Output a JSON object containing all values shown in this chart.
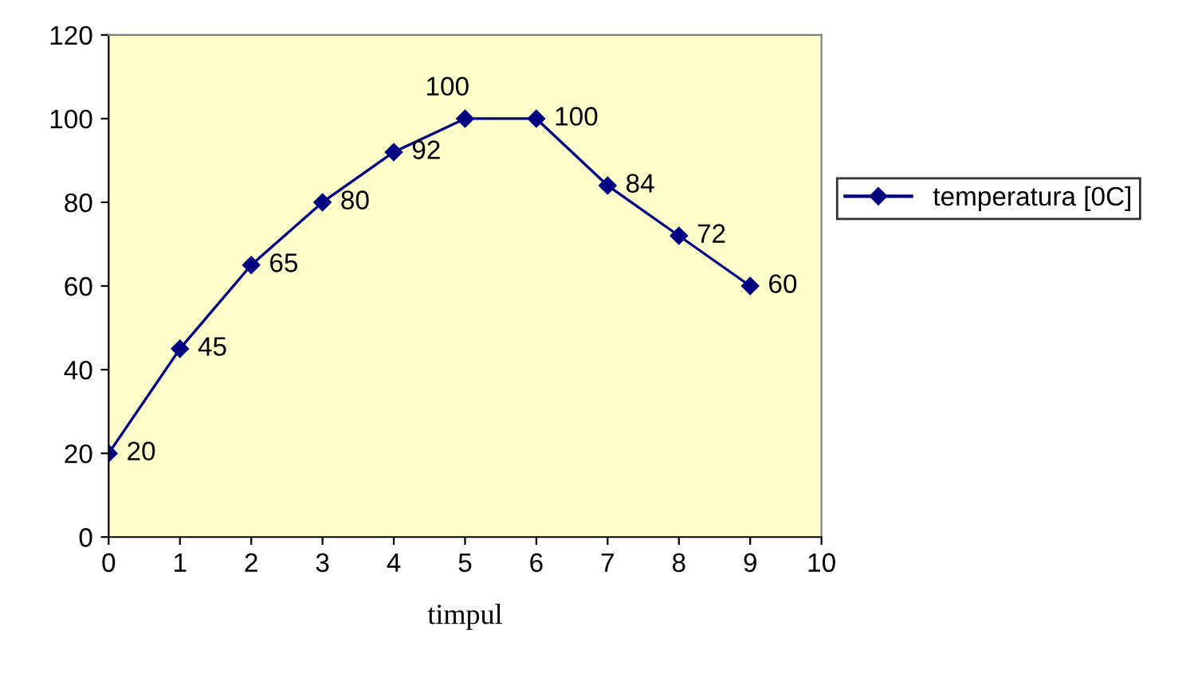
{
  "chart_data": {
    "type": "line",
    "xlabel": "timpul",
    "x": [
      0,
      1,
      2,
      3,
      4,
      5,
      6,
      7,
      8,
      9
    ],
    "series": [
      {
        "name": "temperatura [0C]",
        "color": "#000080",
        "values": [
          20,
          45,
          65,
          80,
          92,
          100,
          100,
          84,
          72,
          60
        ]
      }
    ],
    "xlim": [
      0,
      10
    ],
    "xticks": [
      0,
      1,
      2,
      3,
      4,
      5,
      6,
      7,
      8,
      9,
      10
    ],
    "ylim": [
      0,
      120
    ],
    "yticks": [
      0,
      20,
      40,
      60,
      80,
      100,
      120
    ],
    "grid": false,
    "legend": "right",
    "marker": "diamond",
    "line_style": "solid",
    "data_labels": true
  }
}
